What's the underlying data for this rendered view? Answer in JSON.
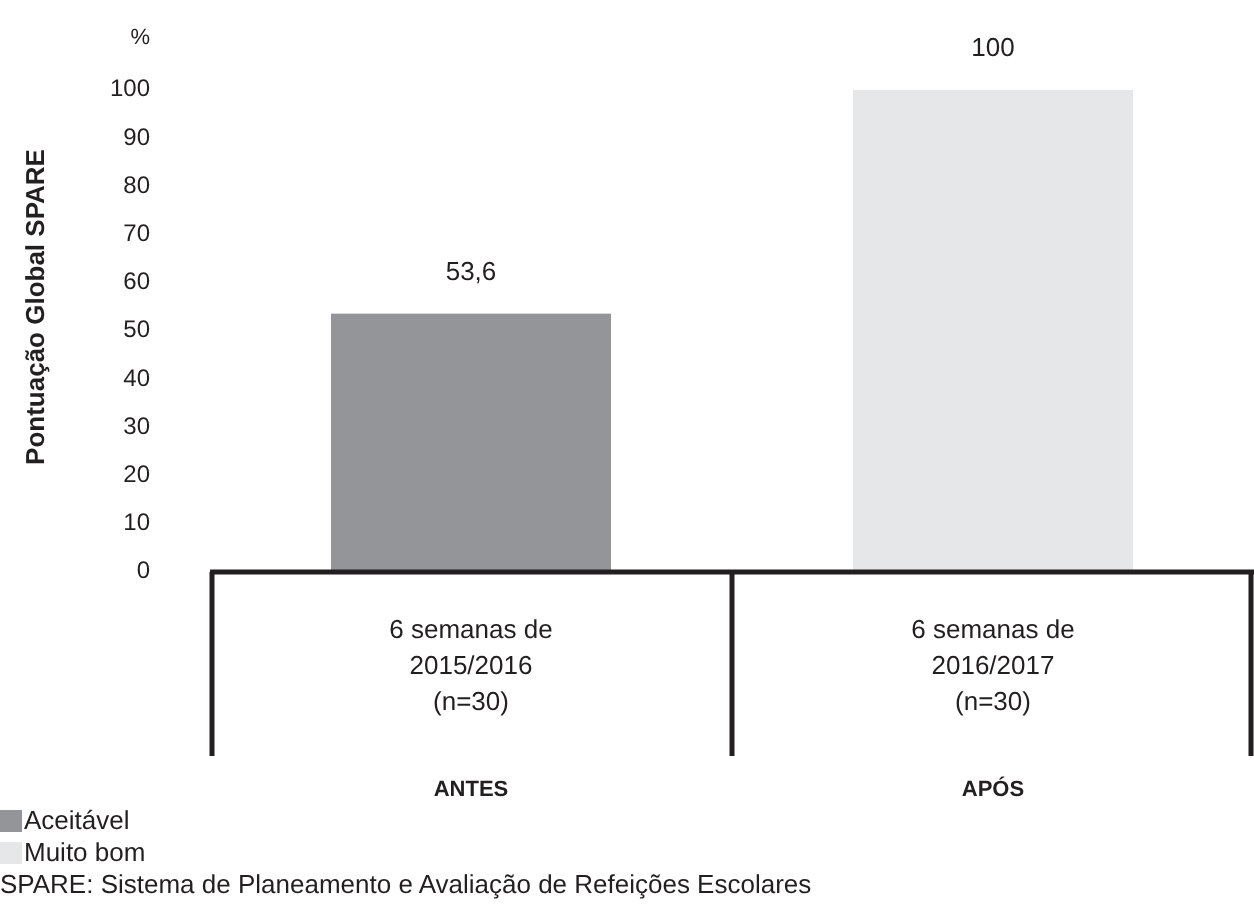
{
  "chart_data": {
    "type": "bar",
    "ylabel": "Pontuação Global SPARE",
    "categories": [
      "6 semanas de\n2015/2016\n(n=30)",
      "6 semanas de\n2016/2017\n(n=30)"
    ],
    "series": [
      {
        "name": "Aceitável",
        "color": "#939598",
        "values": [
          53.6,
          null
        ]
      },
      {
        "name": "Muito bom",
        "color": "#e6e7e8",
        "values": [
          null,
          100
        ]
      }
    ],
    "stacked": true,
    "value_labels": [
      [
        "53,6",
        null
      ],
      [
        null,
        "100"
      ]
    ],
    "ylim": [
      0,
      100
    ],
    "yticks": [
      0,
      10,
      20,
      30,
      40,
      50,
      60,
      70,
      80,
      90,
      100
    ],
    "grid": false,
    "legend": "bottom left",
    "annotations": [
      "%",
      "ANTES",
      "APÓS",
      "SPARE: Sistema de Planeamento e Avaliação de Refeições Escolares"
    ]
  }
}
